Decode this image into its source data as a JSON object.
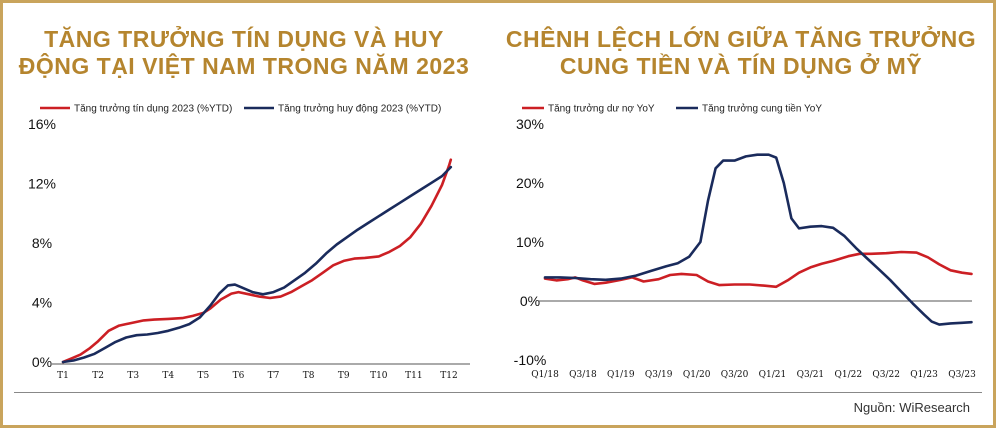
{
  "source": "Nguồn: WiResearch",
  "colors": {
    "red": "#cc1f24",
    "navy": "#1a2b5c",
    "gold": "#b5852e"
  },
  "chart_data": [
    {
      "type": "line",
      "title": "TĂNG TRƯỞNG TÍN DỤNG VÀ HUY ĐỘNG TẠI VIỆT NAM TRONG NĂM 2023",
      "categories": [
        "T1",
        "T2",
        "T3",
        "T4",
        "T5",
        "T6",
        "T7",
        "T8",
        "T9",
        "T10",
        "T11",
        "T12"
      ],
      "yticks": [
        "0%",
        "4%",
        "8%",
        "12%",
        "16%"
      ],
      "ylim": [
        0,
        16
      ],
      "series": [
        {
          "name": "Tăng trưởng tín dụng 2023 (%YTD)",
          "color": "#cc1f24",
          "points": [
            [
              0,
              0
            ],
            [
              0.25,
              0.25
            ],
            [
              0.5,
              0.5
            ],
            [
              0.75,
              0.9
            ],
            [
              1,
              1.4
            ],
            [
              1.3,
              2.1
            ],
            [
              1.6,
              2.45
            ],
            [
              2,
              2.65
            ],
            [
              2.3,
              2.8
            ],
            [
              2.6,
              2.85
            ],
            [
              3,
              2.9
            ],
            [
              3.4,
              2.95
            ],
            [
              3.7,
              3.1
            ],
            [
              4,
              3.3
            ],
            [
              4.2,
              3.6
            ],
            [
              4.5,
              4.2
            ],
            [
              4.8,
              4.6
            ],
            [
              5,
              4.7
            ],
            [
              5.3,
              4.55
            ],
            [
              5.6,
              4.4
            ],
            [
              5.9,
              4.3
            ],
            [
              6.2,
              4.4
            ],
            [
              6.5,
              4.7
            ],
            [
              6.8,
              5.1
            ],
            [
              7.1,
              5.5
            ],
            [
              7.4,
              6.0
            ],
            [
              7.7,
              6.5
            ],
            [
              8,
              6.8
            ],
            [
              8.3,
              6.95
            ],
            [
              8.6,
              7.0
            ],
            [
              9,
              7.1
            ],
            [
              9.3,
              7.4
            ],
            [
              9.6,
              7.8
            ],
            [
              9.9,
              8.4
            ],
            [
              10.2,
              9.3
            ],
            [
              10.5,
              10.5
            ],
            [
              10.8,
              11.9
            ],
            [
              11,
              13.2
            ],
            [
              11.05,
              13.6
            ]
          ]
        },
        {
          "name": "Tăng trưởng huy động 2023 (%YTD)",
          "color": "#1a2b5c",
          "points": [
            [
              0,
              0
            ],
            [
              0.3,
              0.1
            ],
            [
              0.6,
              0.3
            ],
            [
              0.9,
              0.55
            ],
            [
              1.2,
              0.95
            ],
            [
              1.5,
              1.35
            ],
            [
              1.8,
              1.65
            ],
            [
              2.1,
              1.8
            ],
            [
              2.4,
              1.85
            ],
            [
              2.7,
              1.95
            ],
            [
              3,
              2.1
            ],
            [
              3.3,
              2.3
            ],
            [
              3.6,
              2.55
            ],
            [
              3.9,
              3.0
            ],
            [
              4.2,
              3.8
            ],
            [
              4.45,
              4.6
            ],
            [
              4.7,
              5.15
            ],
            [
              4.9,
              5.2
            ],
            [
              5.1,
              5.0
            ],
            [
              5.4,
              4.7
            ],
            [
              5.7,
              4.55
            ],
            [
              6,
              4.7
            ],
            [
              6.3,
              5.0
            ],
            [
              6.6,
              5.5
            ],
            [
              6.9,
              6.0
            ],
            [
              7.2,
              6.6
            ],
            [
              7.5,
              7.3
            ],
            [
              7.8,
              7.9
            ],
            [
              8.1,
              8.4
            ],
            [
              8.4,
              8.9
            ],
            [
              8.7,
              9.35
            ],
            [
              9,
              9.8
            ],
            [
              9.3,
              10.25
            ],
            [
              9.6,
              10.7
            ],
            [
              9.9,
              11.15
            ],
            [
              10.2,
              11.6
            ],
            [
              10.5,
              12.05
            ],
            [
              10.8,
              12.5
            ],
            [
              11.05,
              13.1
            ]
          ]
        }
      ]
    },
    {
      "type": "line",
      "title": "CHÊNH LỆCH LỚN GIỮA TĂNG TRƯỞNG CUNG TIỀN VÀ TÍN DỤNG Ở MỸ",
      "categories": [
        "Q1/18",
        "Q3/18",
        "Q1/19",
        "Q3/19",
        "Q1/20",
        "Q3/20",
        "Q1/21",
        "Q3/21",
        "Q1/22",
        "Q3/22",
        "Q1/23",
        "Q3/23"
      ],
      "yticks": [
        "-10%",
        "0%",
        "10%",
        "20%",
        "30%"
      ],
      "ylim": [
        -10,
        30
      ],
      "series": [
        {
          "name": "Tăng trưởng dư nợ YoY",
          "color": "#cc1f24",
          "points": [
            [
              0,
              3.8
            ],
            [
              0.3,
              3.5
            ],
            [
              0.6,
              3.7
            ],
            [
              0.8,
              4.0
            ],
            [
              1,
              3.5
            ],
            [
              1.3,
              2.9
            ],
            [
              1.6,
              3.1
            ],
            [
              2,
              3.6
            ],
            [
              2.3,
              4.0
            ],
            [
              2.6,
              3.3
            ],
            [
              3,
              3.7
            ],
            [
              3.3,
              4.4
            ],
            [
              3.6,
              4.6
            ],
            [
              4,
              4.4
            ],
            [
              4.3,
              3.3
            ],
            [
              4.6,
              2.7
            ],
            [
              5,
              2.8
            ],
            [
              5.4,
              2.8
            ],
            [
              5.8,
              2.6
            ],
            [
              6.1,
              2.4
            ],
            [
              6.4,
              3.5
            ],
            [
              6.7,
              4.8
            ],
            [
              7,
              5.7
            ],
            [
              7.3,
              6.3
            ],
            [
              7.6,
              6.8
            ],
            [
              8,
              7.6
            ],
            [
              8.3,
              8.0
            ],
            [
              8.6,
              8.0
            ],
            [
              9,
              8.1
            ],
            [
              9.4,
              8.3
            ],
            [
              9.8,
              8.2
            ],
            [
              10.1,
              7.4
            ],
            [
              10.4,
              6.2
            ],
            [
              10.7,
              5.2
            ],
            [
              11,
              4.8
            ],
            [
              11.25,
              4.6
            ]
          ]
        },
        {
          "name": "Tăng trưởng cung tiền YoY",
          "color": "#1a2b5c",
          "points": [
            [
              0,
              4.0
            ],
            [
              0.4,
              4.0
            ],
            [
              0.8,
              3.9
            ],
            [
              1.2,
              3.7
            ],
            [
              1.6,
              3.6
            ],
            [
              2,
              3.8
            ],
            [
              2.4,
              4.3
            ],
            [
              2.8,
              5.1
            ],
            [
              3.2,
              5.9
            ],
            [
              3.5,
              6.4
            ],
            [
              3.8,
              7.5
            ],
            [
              4.1,
              10.0
            ],
            [
              4.3,
              17.0
            ],
            [
              4.5,
              22.5
            ],
            [
              4.7,
              23.8
            ],
            [
              5,
              23.8
            ],
            [
              5.3,
              24.5
            ],
            [
              5.6,
              24.8
            ],
            [
              5.9,
              24.8
            ],
            [
              6.1,
              24.3
            ],
            [
              6.3,
              20.0
            ],
            [
              6.5,
              14.0
            ],
            [
              6.7,
              12.3
            ],
            [
              7,
              12.6
            ],
            [
              7.3,
              12.7
            ],
            [
              7.6,
              12.4
            ],
            [
              7.9,
              11.0
            ],
            [
              8.2,
              9.0
            ],
            [
              8.5,
              7.2
            ],
            [
              8.8,
              5.4
            ],
            [
              9.1,
              3.6
            ],
            [
              9.4,
              1.6
            ],
            [
              9.7,
              -0.4
            ],
            [
              10,
              -2.3
            ],
            [
              10.2,
              -3.5
            ],
            [
              10.4,
              -4.0
            ],
            [
              10.7,
              -3.8
            ],
            [
              11,
              -3.7
            ],
            [
              11.25,
              -3.6
            ]
          ]
        }
      ]
    }
  ]
}
